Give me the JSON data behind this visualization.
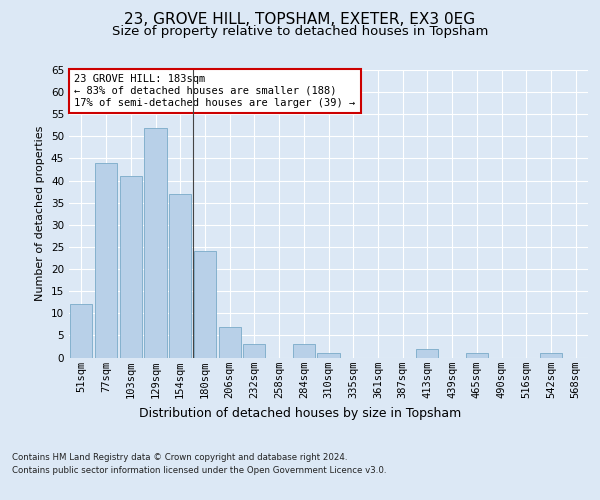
{
  "title1": "23, GROVE HILL, TOPSHAM, EXETER, EX3 0EG",
  "title2": "Size of property relative to detached houses in Topsham",
  "xlabel": "Distribution of detached houses by size in Topsham",
  "ylabel": "Number of detached properties",
  "categories": [
    "51sqm",
    "77sqm",
    "103sqm",
    "129sqm",
    "154sqm",
    "180sqm",
    "206sqm",
    "232sqm",
    "258sqm",
    "284sqm",
    "310sqm",
    "335sqm",
    "361sqm",
    "387sqm",
    "413sqm",
    "439sqm",
    "465sqm",
    "490sqm",
    "516sqm",
    "542sqm",
    "568sqm"
  ],
  "values": [
    12,
    44,
    41,
    52,
    37,
    24,
    7,
    3,
    0,
    3,
    1,
    0,
    0,
    0,
    2,
    0,
    1,
    0,
    0,
    1,
    0
  ],
  "bar_color": "#b8d0e8",
  "bar_edge_color": "#7aaac8",
  "highlight_index": 4,
  "highlight_line_color": "#444444",
  "annotation_text": "23 GROVE HILL: 183sqm\n← 83% of detached houses are smaller (188)\n17% of semi-detached houses are larger (39) →",
  "annotation_box_color": "#ffffff",
  "annotation_box_edge": "#cc0000",
  "ylim": [
    0,
    65
  ],
  "yticks": [
    0,
    5,
    10,
    15,
    20,
    25,
    30,
    35,
    40,
    45,
    50,
    55,
    60,
    65
  ],
  "background_color": "#dce8f5",
  "plot_bg_color": "#dce8f5",
  "footer1": "Contains HM Land Registry data © Crown copyright and database right 2024.",
  "footer2": "Contains public sector information licensed under the Open Government Licence v3.0.",
  "title1_fontsize": 11,
  "title2_fontsize": 9.5,
  "xlabel_fontsize": 9,
  "ylabel_fontsize": 8,
  "tick_fontsize": 7.5
}
